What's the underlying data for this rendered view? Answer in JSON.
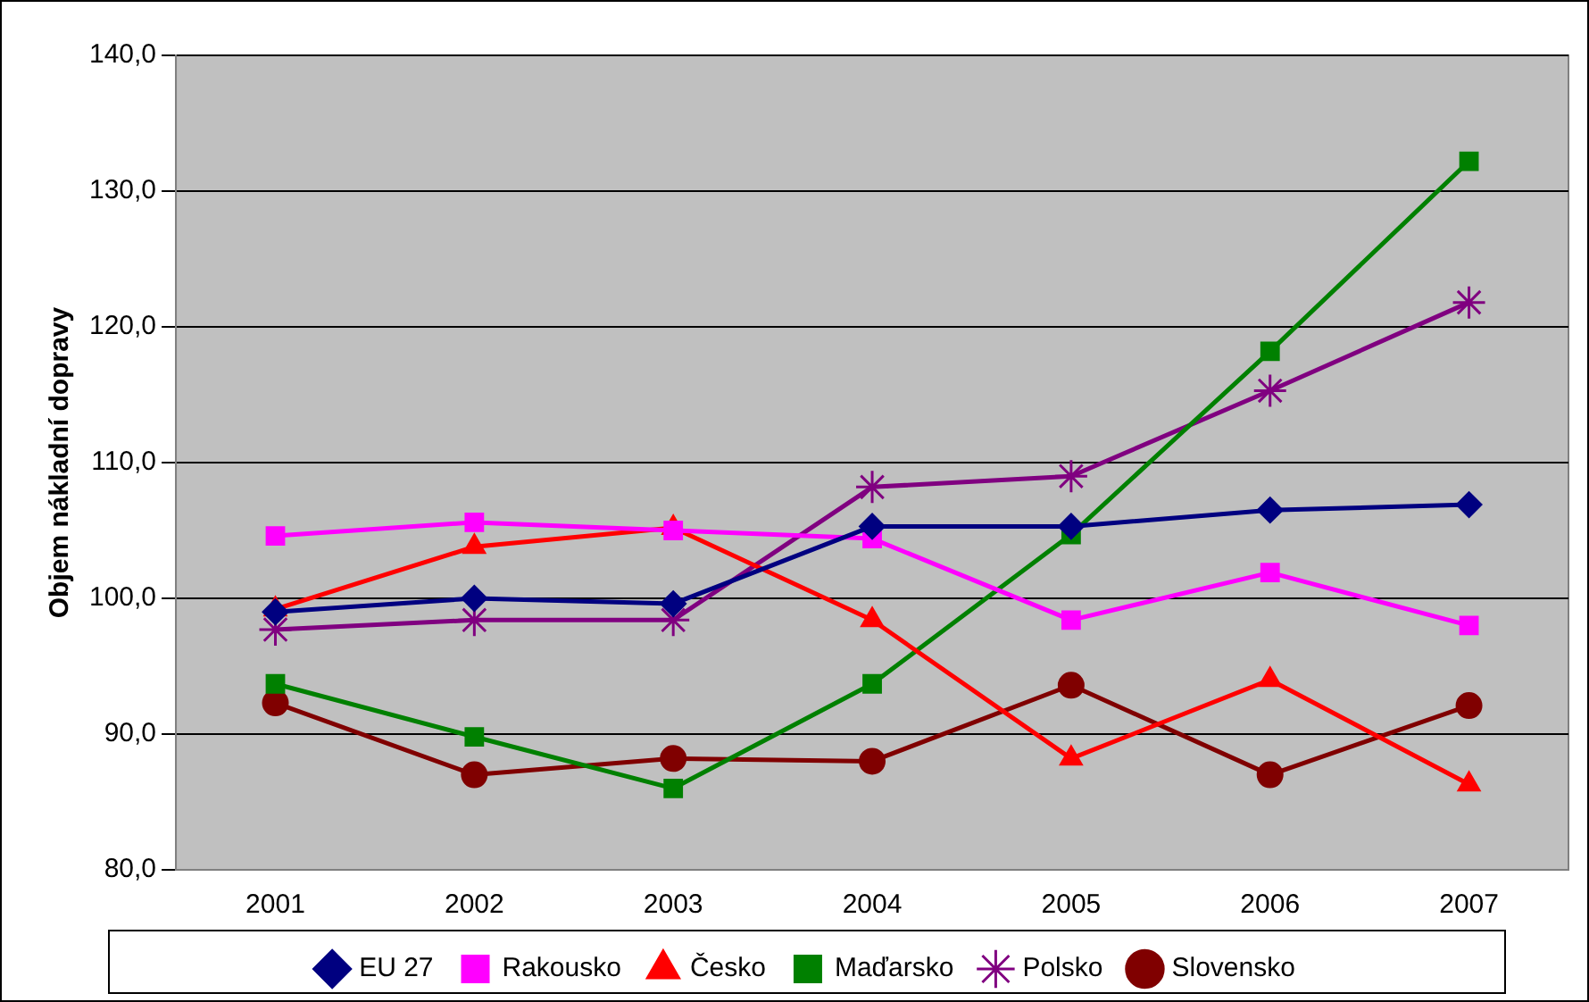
{
  "chart_data": {
    "type": "line",
    "ylabel": "Objem nákladní dopravy",
    "categories": [
      "2001",
      "2002",
      "2003",
      "2004",
      "2005",
      "2006",
      "2007"
    ],
    "series": [
      {
        "name": "EU 27",
        "color": "#000080",
        "marker": "diamond",
        "values": [
          99.0,
          100.0,
          99.6,
          105.3,
          105.3,
          106.5,
          106.9
        ]
      },
      {
        "name": "Rakousko",
        "color": "#ff00ff",
        "marker": "square",
        "values": [
          104.6,
          105.6,
          105.0,
          104.4,
          98.4,
          101.9,
          98.0
        ]
      },
      {
        "name": "Česko",
        "color": "#ff0000",
        "marker": "triangle",
        "values": [
          99.2,
          103.8,
          105.2,
          98.4,
          88.2,
          94.0,
          86.3
        ]
      },
      {
        "name": "Maďarsko",
        "color": "#008000",
        "marker": "square",
        "values": [
          93.7,
          89.8,
          86.0,
          93.7,
          104.7,
          118.2,
          132.2
        ]
      },
      {
        "name": "Polsko",
        "color": "#800080",
        "marker": "cross",
        "values": [
          97.7,
          98.4,
          98.4,
          108.2,
          109.0,
          115.3,
          121.8
        ]
      },
      {
        "name": "Slovensko",
        "color": "#800000",
        "marker": "circle",
        "values": [
          92.3,
          87.0,
          88.2,
          88.0,
          93.6,
          87.0,
          92.1
        ]
      }
    ],
    "ylim": [
      80,
      140
    ],
    "yticks": [
      {
        "value": 80,
        "label": "80,0"
      },
      {
        "value": 90,
        "label": "90,0"
      },
      {
        "value": 100,
        "label": "100,0"
      },
      {
        "value": 110,
        "label": "110,0"
      },
      {
        "value": 120,
        "label": "120,0"
      },
      {
        "value": 130,
        "label": "130,0"
      },
      {
        "value": 140,
        "label": "140,0"
      }
    ],
    "grid": "y",
    "legend": "bottom",
    "line_style": "solid"
  }
}
